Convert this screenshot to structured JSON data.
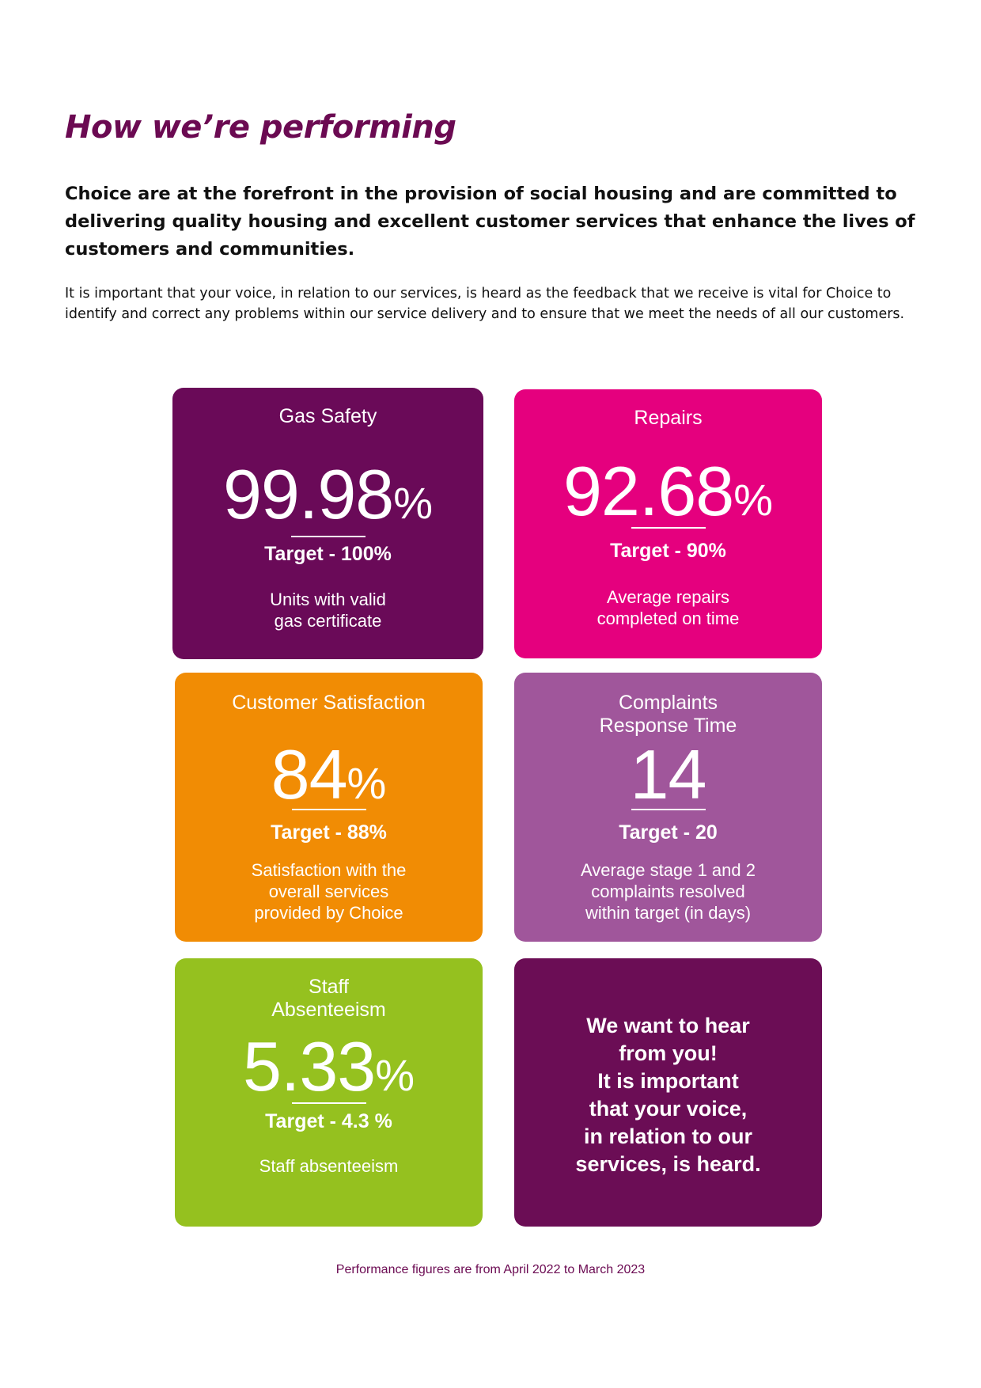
{
  "page": {
    "title": "How we’re performing",
    "lead": "Choice are at the forefront in the provision of social housing and are committed to delivering quality housing and excellent customer services that enhance the lives of customers and communities.",
    "body": "It is important that your voice, in relation to our services, is heard as the feedback that we receive is vital for Choice to identify and correct any problems within our service delivery and to ensure that we meet the needs of all our customers.",
    "footnote": "Performance figures are from April 2022 to March 2023"
  },
  "colors": {
    "title": "#6b0a52",
    "gas_safety": "#6a0a58",
    "repairs": "#e5007e",
    "customer_satisfaction": "#f18c04",
    "complaints": "#a0569b",
    "staff_absenteeism": "#95c11f",
    "callout": "#6b0d55"
  },
  "cards": {
    "gas_safety": {
      "heading": "Gas Safety",
      "value": "99.98",
      "unit": "%",
      "target": "Target - 100%",
      "desc_line1": "Units with valid",
      "desc_line2": "gas certificate"
    },
    "repairs": {
      "heading": "Repairs",
      "value": "92.68",
      "unit": "%",
      "target": "Target - 90%",
      "desc_line1": "Average repairs",
      "desc_line2": "completed on time"
    },
    "customer_satisfaction": {
      "heading": "Customer Satisfaction",
      "value": "84",
      "unit": "%",
      "target": "Target - 88%",
      "desc_line1": "Satisfaction with the",
      "desc_line2": "overall services",
      "desc_line3": "provided by Choice"
    },
    "complaints": {
      "heading_line1": "Complaints",
      "heading_line2": "Response Time",
      "value": "14",
      "target": "Target - 20",
      "desc_line1": "Average stage 1 and 2",
      "desc_line2": "complaints resolved",
      "desc_line3": "within target (in days)"
    },
    "staff_absenteeism": {
      "heading_line1": "Staff",
      "heading_line2": "Absenteeism",
      "value": "5.33",
      "unit": "%",
      "target": "Target - 4.3 %",
      "desc_line1": "Staff absenteeism"
    },
    "callout": {
      "line1": "We want to hear",
      "line2": "from you!",
      "line3": "It is important",
      "line4": "that your voice,",
      "line5": "in relation to our",
      "line6": "services, is heard."
    }
  }
}
